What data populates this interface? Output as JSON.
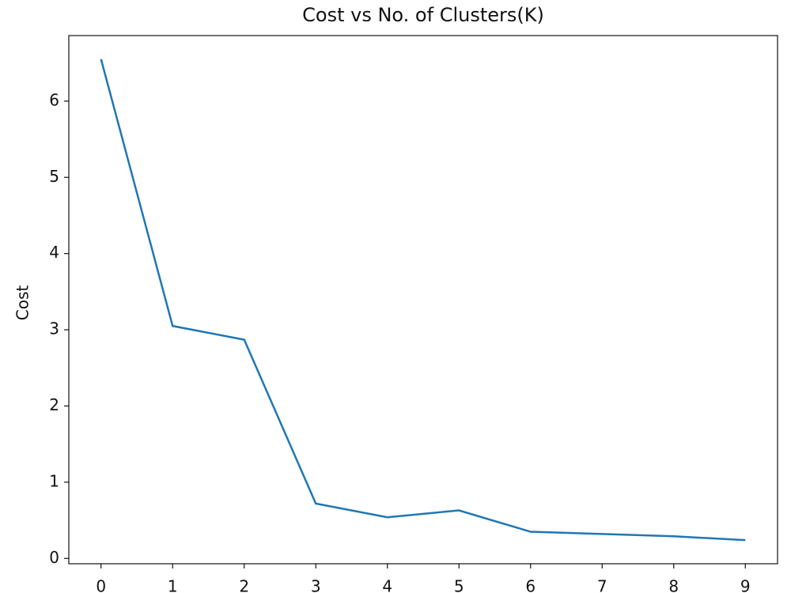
{
  "chart_data": {
    "type": "line",
    "title": "Cost vs No. of Clusters(K)",
    "y_label": "Cost",
    "x": [
      0,
      1,
      2,
      3,
      4,
      5,
      6,
      7,
      8,
      9
    ],
    "series": [
      {
        "name": "Cost",
        "color": "#1f77b4",
        "values": [
          6.55,
          3.05,
          2.87,
          0.72,
          0.54,
          0.63,
          0.35,
          0.32,
          0.29,
          0.24
        ]
      }
    ],
    "xlim": [
      -0.45,
      9.45
    ],
    "ylim": [
      -0.07,
      6.86
    ],
    "xticks": [
      0,
      1,
      2,
      3,
      4,
      5,
      6,
      7,
      8,
      9
    ],
    "yticks": [
      0,
      1,
      2,
      3,
      4,
      5,
      6
    ],
    "grid": false
  }
}
